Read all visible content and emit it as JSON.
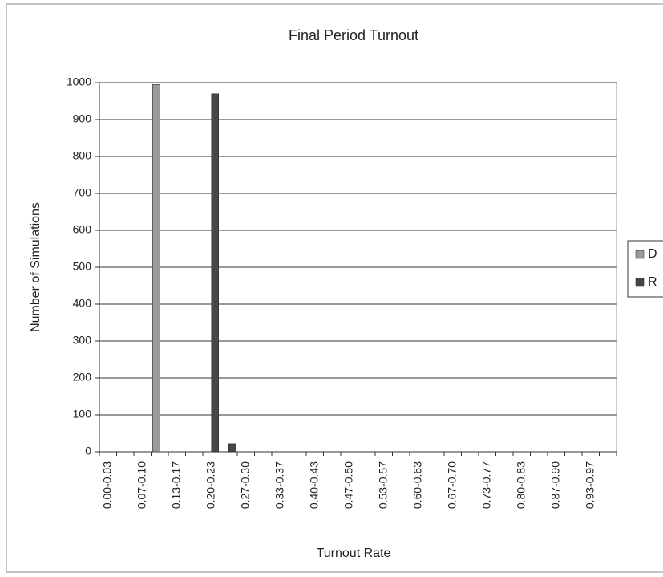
{
  "chart_data": {
    "type": "bar",
    "title": "Final Period Turnout",
    "x_label": "Turnout Rate",
    "y_label": "Number of Simulations",
    "categories": [
      "0.00-0.03",
      null,
      "0.07-0.10",
      null,
      "0.13-0.17",
      null,
      "0.20-0.23",
      null,
      "0.27-0.30",
      null,
      "0.33-0.37",
      null,
      "0.40-0.43",
      null,
      "0.47-0.50",
      null,
      "0.53-0.57",
      null,
      "0.60-0.63",
      null,
      "0.67-0.70",
      null,
      "0.73-0.77",
      null,
      "0.80-0.83",
      null,
      "0.87-0.90",
      null,
      "0.93-0.97",
      null
    ],
    "series": [
      {
        "name": "D",
        "color": "#9a9a9a",
        "values": [
          0,
          0,
          0,
          995,
          0,
          0,
          0,
          0,
          0,
          0,
          0,
          0,
          0,
          0,
          0,
          0,
          0,
          0,
          0,
          0,
          0,
          0,
          0,
          0,
          0,
          0,
          0,
          0,
          0,
          0
        ]
      },
      {
        "name": "R",
        "color": "#474747",
        "values": [
          0,
          0,
          0,
          0,
          0,
          0,
          970,
          22,
          0,
          0,
          0,
          0,
          0,
          0,
          0,
          0,
          0,
          0,
          0,
          0,
          0,
          0,
          0,
          0,
          0,
          0,
          0,
          0,
          0,
          0
        ]
      }
    ],
    "ylim": [
      0,
      1000
    ],
    "yticks": [
      0,
      100,
      200,
      300,
      400,
      500,
      600,
      700,
      800,
      900,
      1000
    ],
    "grid": true,
    "legend": "right"
  }
}
